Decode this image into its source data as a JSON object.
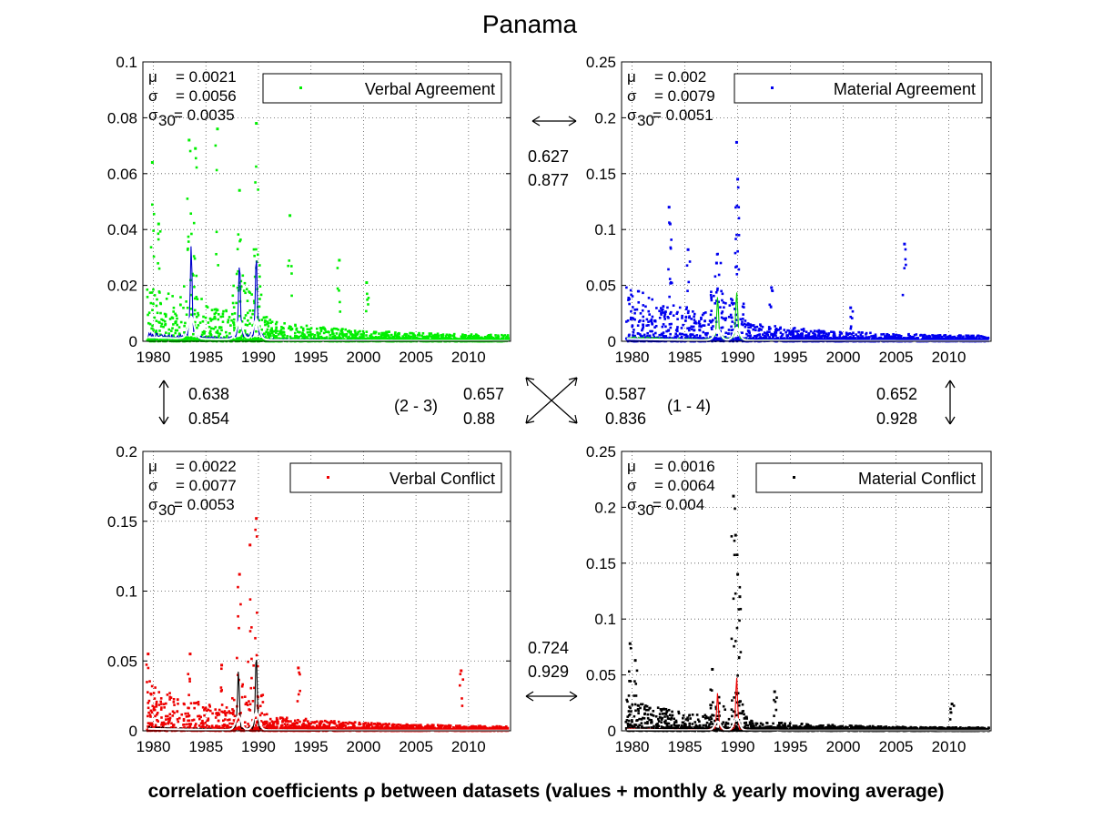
{
  "figure": {
    "title": "Panama",
    "footer": "correlation coefficients ρ between datasets (values + monthly & yearly moving average)"
  },
  "chart_data": [
    {
      "type": "scatter",
      "legend": "Verbal Agreement",
      "color": "#00ee00",
      "monthly_color": "#0000cc",
      "yearly_color": "#ffffff",
      "xlim": [
        1979,
        2014
      ],
      "ylim": [
        0,
        0.1
      ],
      "xticks": [
        "1980",
        "1985",
        "1990",
        "1995",
        "2000",
        "2005",
        "2010"
      ],
      "yticks": [
        "0",
        "0.02",
        "0.04",
        "0.06",
        "0.08",
        "0.1"
      ],
      "grid": true,
      "legend_position": "top-right",
      "stats": {
        "mu": "= 0.0021",
        "sigma": "= 0.0056",
        "sigma30": "= 0.0035"
      },
      "peaks": [
        [
          1979.9,
          0.064
        ],
        [
          1980.5,
          0.042
        ],
        [
          1983.4,
          0.072
        ],
        [
          1984.0,
          0.069
        ],
        [
          1986.1,
          0.076
        ],
        [
          1988.2,
          0.054
        ],
        [
          1989.8,
          0.078
        ],
        [
          1993.0,
          0.045
        ],
        [
          1997.7,
          0.029
        ],
        [
          2000.3,
          0.021
        ]
      ],
      "spikes": [
        [
          1983.6,
          0.011
        ],
        [
          1988.2,
          0.009
        ],
        [
          1989.8,
          0.01
        ]
      ],
      "baseline": 0.004,
      "spread": 0.02
    },
    {
      "type": "scatter",
      "legend": "Material Agreement",
      "color": "#0000ee",
      "monthly_color": "#00cc00",
      "yearly_color": "#ffffff",
      "xlim": [
        1979,
        2014
      ],
      "ylim": [
        0,
        0.25
      ],
      "xticks": [
        "1980",
        "1985",
        "1990",
        "1995",
        "2000",
        "2005",
        "2010"
      ],
      "yticks": [
        "0",
        "0.05",
        "0.1",
        "0.15",
        "0.2",
        "0.25"
      ],
      "grid": true,
      "legend_position": "top-right",
      "stats": {
        "mu": "= 0.002",
        "sigma": "= 0.0079",
        "sigma30": "= 0.0051"
      },
      "peaks": [
        [
          1983.5,
          0.12
        ],
        [
          1983.6,
          0.105
        ],
        [
          1985.3,
          0.082
        ],
        [
          1988.0,
          0.07
        ],
        [
          1989.9,
          0.178
        ],
        [
          1990.0,
          0.145
        ],
        [
          1993.2,
          0.048
        ],
        [
          2000.7,
          0.03
        ],
        [
          2005.8,
          0.087
        ]
      ],
      "spikes": [
        [
          1988.1,
          0.013
        ],
        [
          1989.9,
          0.016
        ]
      ],
      "baseline": 0.006,
      "spread": 0.045
    },
    {
      "type": "scatter",
      "legend": "Verbal Conflict",
      "color": "#ee0000",
      "monthly_color": "#000000",
      "yearly_color": "#ffffff",
      "xlim": [
        1979,
        2014
      ],
      "ylim": [
        0,
        0.2
      ],
      "xticks": [
        "1980",
        "1985",
        "1990",
        "1995",
        "2000",
        "2005",
        "2010"
      ],
      "yticks": [
        "0",
        "0.05",
        "0.1",
        "0.15",
        "0.2"
      ],
      "grid": true,
      "legend_position": "top-right",
      "stats": {
        "mu": "= 0.0022",
        "sigma": "= 0.0077",
        "sigma30": "= 0.0053"
      },
      "peaks": [
        [
          1979.5,
          0.055
        ],
        [
          1983.5,
          0.055
        ],
        [
          1986.5,
          0.047
        ],
        [
          1988.2,
          0.112
        ],
        [
          1989.2,
          0.133
        ],
        [
          1989.8,
          0.152
        ],
        [
          1993.8,
          0.045
        ],
        [
          2009.3,
          0.043
        ]
      ],
      "spikes": [
        [
          1988.1,
          0.015
        ],
        [
          1989.8,
          0.02
        ]
      ],
      "baseline": 0.004,
      "spread": 0.03
    },
    {
      "type": "scatter",
      "legend": "Material Conflict",
      "color": "#000000",
      "monthly_color": "#ee0000",
      "yearly_color": "#ffffff",
      "xlim": [
        1979,
        2014
      ],
      "ylim": [
        0,
        0.25
      ],
      "xticks": [
        "1980",
        "1985",
        "1990",
        "1995",
        "2000",
        "2005",
        "2010"
      ],
      "yticks": [
        "0",
        "0.05",
        "0.1",
        "0.15",
        "0.2",
        "0.25"
      ],
      "grid": true,
      "legend_position": "top-right",
      "stats": {
        "mu": "= 0.0016",
        "sigma": "= 0.0064",
        "sigma30": "= 0.004"
      },
      "peaks": [
        [
          1979.8,
          0.078
        ],
        [
          1980.3,
          0.063
        ],
        [
          1987.6,
          0.055
        ],
        [
          1989.6,
          0.21
        ],
        [
          1989.8,
          0.175
        ],
        [
          1990.0,
          0.14
        ],
        [
          1990.2,
          0.12
        ],
        [
          1993.5,
          0.035
        ],
        [
          2010.3,
          0.024
        ]
      ],
      "spikes": [
        [
          1988.1,
          0.012
        ],
        [
          1989.9,
          0.018
        ]
      ],
      "baseline": 0.003,
      "spread": 0.025
    }
  ],
  "correlations": {
    "top": [
      "0.627",
      "0.877"
    ],
    "bottom": [
      "0.724",
      "0.929"
    ],
    "left": [
      "0.638",
      "0.854"
    ],
    "right": [
      "0.652",
      "0.928"
    ],
    "diag_left_label": "(2 - 3)",
    "diag_left": [
      "0.657",
      "0.88"
    ],
    "diag_right_label": "(1 - 4)",
    "diag_right": [
      "0.587",
      "0.836"
    ]
  }
}
